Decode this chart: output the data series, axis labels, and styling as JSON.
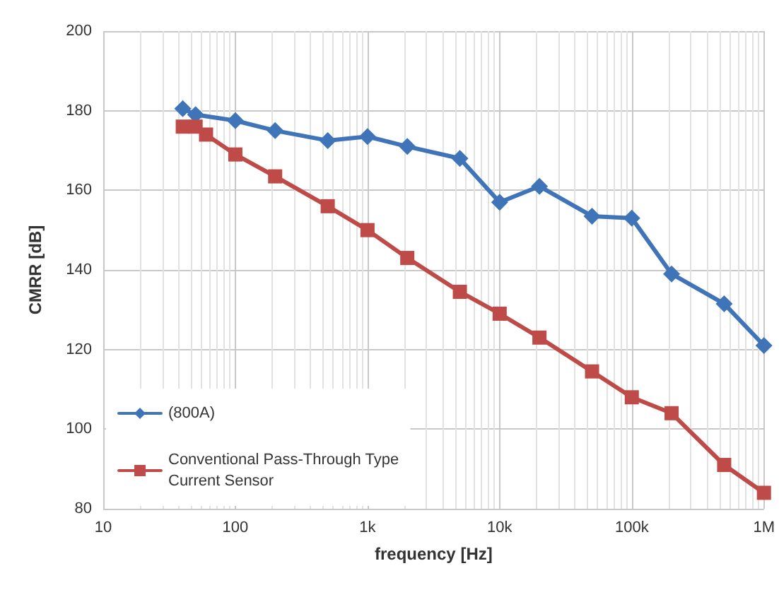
{
  "chart_data": {
    "type": "line",
    "xlabel": "frequency [Hz]",
    "ylabel": "CMRR [dB]",
    "log": "x",
    "xlim": [
      10,
      1000000
    ],
    "xticks": [
      10,
      100,
      {
        "value": 1000,
        "label": "1k"
      },
      {
        "value": 10000,
        "label": "10k"
      },
      {
        "value": 100000,
        "label": "100k"
      },
      {
        "value": 1000000,
        "label": "1M"
      }
    ],
    "ylim": [
      80,
      200
    ],
    "yticks": [
      80,
      100,
      120,
      140,
      160,
      180,
      200
    ],
    "grid": true,
    "legend": "bottom left",
    "line_style": "solid",
    "series": [
      {
        "name": "(800A)",
        "color": "#3f74b8",
        "marker": "diamond",
        "x": [
          40,
          50,
          100,
          200,
          500,
          1000,
          2000,
          5000,
          10000,
          20000,
          50000,
          100000,
          200000,
          500000,
          1000000
        ],
        "values": [
          180.5,
          179,
          177.5,
          175,
          172.5,
          173.5,
          171,
          168,
          157,
          161,
          153.5,
          153,
          139,
          131.5,
          121
        ]
      },
      {
        "name": "Conventional Pass-Through Type\nCurrent Sensor",
        "color": "#be4b48",
        "marker": "square",
        "x": [
          40,
          50,
          60,
          100,
          200,
          500,
          1000,
          2000,
          5000,
          10000,
          20000,
          50000,
          100000,
          200000,
          500000,
          1000000
        ],
        "values": [
          176,
          176,
          174,
          169,
          163.5,
          156,
          150,
          143,
          134.5,
          129,
          123,
          114.5,
          108,
          104,
          91,
          84
        ]
      }
    ]
  }
}
